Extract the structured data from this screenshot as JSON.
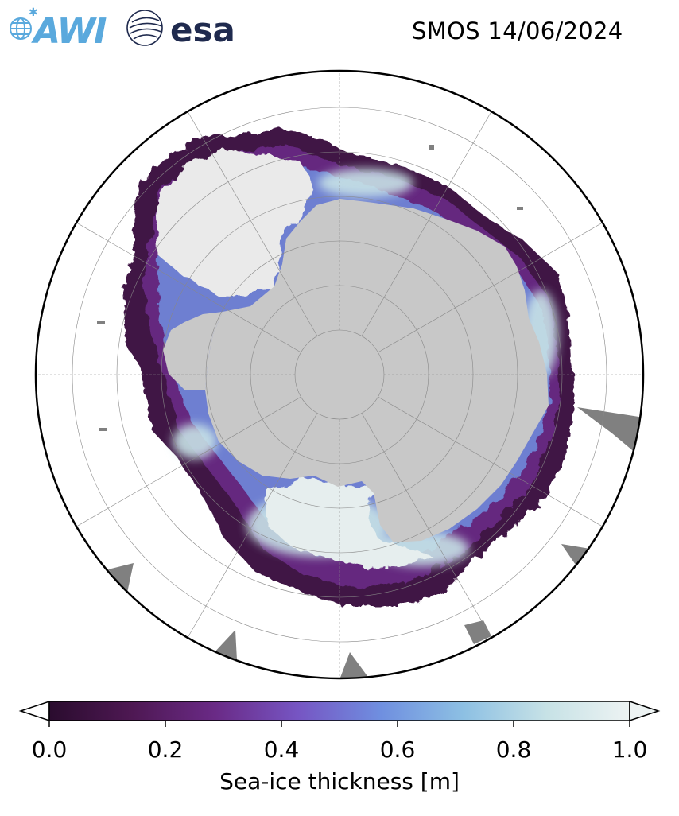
{
  "header": {
    "title": "SMOS 14/06/2024",
    "logos": [
      {
        "name": "awi-logo",
        "text": "AWI",
        "color": "#5aa9dd"
      },
      {
        "name": "esa-logo",
        "text": "esa",
        "color": "#1f2a4e"
      }
    ]
  },
  "map": {
    "projection": "south-polar-stereographic",
    "colors": {
      "ocean": "#ffffff",
      "land": "#c8c8c8",
      "ice_shelf_thick": "#eaeaea",
      "no_data": "#808080",
      "graticule": "#888888"
    }
  },
  "colorbar": {
    "label": "Sea-ice thickness [m]",
    "min": 0.0,
    "max": 1.0,
    "extend": "both",
    "ticks": [
      "0.0",
      "0.2",
      "0.4",
      "0.6",
      "0.8",
      "1.0"
    ],
    "colormap": [
      "#2a0c2e",
      "#4e1853",
      "#6a2a86",
      "#7655c3",
      "#6f8fe0",
      "#8dc0e3",
      "#c7e2e6",
      "#edf3f3"
    ]
  }
}
